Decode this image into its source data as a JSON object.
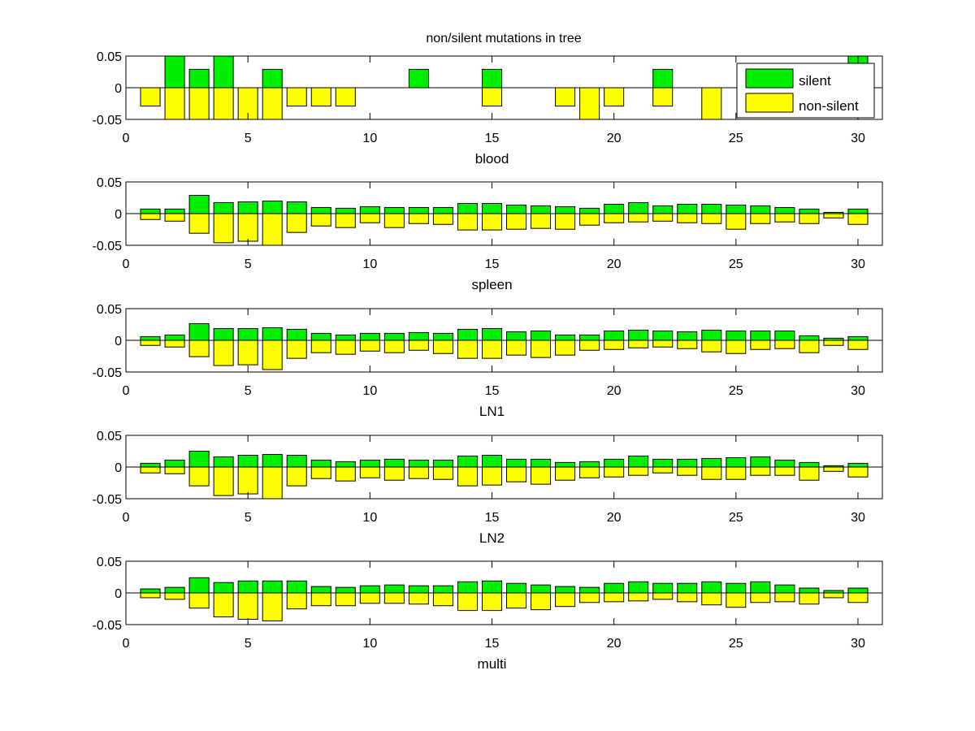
{
  "chart_data": {
    "type": "bar",
    "title": "non/silent mutations in tree",
    "legend": {
      "placement": "top-right",
      "entries": [
        "silent",
        "non-silent"
      ]
    },
    "colors": {
      "silent": "#00ee00",
      "non_silent": "#ffff00",
      "edge": "#000000"
    },
    "xlim": [
      0,
      31
    ],
    "ylim": [
      -0.05,
      0.05
    ],
    "xticks": [
      0,
      5,
      10,
      15,
      20,
      25,
      30
    ],
    "yticks": [
      0.05,
      0,
      -0.05
    ],
    "ytick_labels": [
      "0.05",
      "0",
      "-0.05"
    ],
    "x": [
      1,
      2,
      3,
      4,
      5,
      6,
      7,
      8,
      9,
      10,
      11,
      12,
      13,
      14,
      15,
      16,
      17,
      18,
      19,
      20,
      21,
      22,
      23,
      24,
      25,
      26,
      27,
      28,
      29,
      30
    ],
    "subplots": [
      {
        "xlabel": "blood",
        "series": [
          {
            "name": "silent",
            "values": [
              0,
              0.057,
              0.029,
              0.057,
              0,
              0.029,
              0,
              0,
              0,
              0,
              0,
              0.029,
              0,
              0,
              0.029,
              0,
              0,
              0,
              0,
              0,
              0,
              0.029,
              0,
              0,
              0,
              0,
              0,
              0,
              0,
              0.057
            ]
          },
          {
            "name": "non-silent",
            "values": [
              -0.029,
              -0.057,
              -0.057,
              -0.057,
              -0.057,
              -0.057,
              -0.029,
              -0.029,
              -0.029,
              0,
              0,
              0,
              0,
              0,
              -0.029,
              0,
              0,
              -0.029,
              -0.057,
              -0.029,
              0,
              -0.029,
              0,
              -0.057,
              0,
              0,
              0,
              0,
              0,
              0
            ]
          }
        ]
      },
      {
        "xlabel": "spleen",
        "series": [
          {
            "name": "silent",
            "values": [
              0.0072,
              0.0072,
              0.0288,
              0.0174,
              0.0186,
              0.0199,
              0.0186,
              0.0097,
              0.0085,
              0.011,
              0.0097,
              0.0097,
              0.0097,
              0.016,
              0.016,
              0.0136,
              0.0123,
              0.011,
              0.0085,
              0.0148,
              0.0174,
              0.0123,
              0.0148,
              0.0148,
              0.0136,
              0.0123,
              0.0097,
              0.0072,
              0.002,
              0.0072
            ]
          },
          {
            "name": "non-silent",
            "values": [
              -0.0093,
              -0.0119,
              -0.031,
              -0.046,
              -0.0436,
              -0.051,
              -0.0297,
              -0.0195,
              -0.022,
              -0.0144,
              -0.022,
              -0.0157,
              -0.017,
              -0.0258,
              -0.0258,
              -0.0246,
              -0.0233,
              -0.0246,
              -0.0182,
              -0.0144,
              -0.0131,
              -0.0119,
              -0.0144,
              -0.0157,
              -0.0246,
              -0.0157,
              -0.0131,
              -0.0157,
              -0.0068,
              -0.017
            ]
          }
        ]
      },
      {
        "xlabel": "LN1",
        "series": [
          {
            "name": "silent",
            "values": [
              0.0059,
              0.0085,
              0.0263,
              0.0186,
              0.0186,
              0.0199,
              0.0174,
              0.011,
              0.0085,
              0.011,
              0.011,
              0.0123,
              0.011,
              0.0174,
              0.0186,
              0.0136,
              0.0148,
              0.0085,
              0.0085,
              0.0148,
              0.0161,
              0.0148,
              0.0136,
              0.0161,
              0.0148,
              0.0148,
              0.0148,
              0.0072,
              0.0034,
              0.0059
            ]
          },
          {
            "name": "non-silent",
            "values": [
              -0.008,
              -0.0106,
              -0.0258,
              -0.0398,
              -0.0386,
              -0.0462,
              -0.0284,
              -0.0195,
              -0.022,
              -0.017,
              -0.0195,
              -0.0157,
              -0.0208,
              -0.0284,
              -0.0284,
              -0.0233,
              -0.0271,
              -0.0233,
              -0.0157,
              -0.0144,
              -0.0119,
              -0.0106,
              -0.0131,
              -0.0182,
              -0.0208,
              -0.0144,
              -0.0131,
              -0.0195,
              -0.008,
              -0.0144
            ]
          }
        ]
      },
      {
        "xlabel": "LN2",
        "series": [
          {
            "name": "silent",
            "values": [
              0.0059,
              0.011,
              0.025,
              0.0161,
              0.0186,
              0.0199,
              0.0186,
              0.011,
              0.0085,
              0.011,
              0.0123,
              0.011,
              0.011,
              0.0174,
              0.0186,
              0.0123,
              0.0123,
              0.0072,
              0.0085,
              0.0123,
              0.0174,
              0.0123,
              0.0123,
              0.0136,
              0.0148,
              0.0161,
              0.011,
              0.0072,
              0.0021,
              0.0059
            ]
          },
          {
            "name": "non-silent",
            "values": [
              -0.0093,
              -0.0106,
              -0.0297,
              -0.045,
              -0.0424,
              -0.051,
              -0.0297,
              -0.0182,
              -0.022,
              -0.017,
              -0.0208,
              -0.0182,
              -0.0195,
              -0.0297,
              -0.0284,
              -0.0233,
              -0.0271,
              -0.0208,
              -0.017,
              -0.0157,
              -0.0131,
              -0.0093,
              -0.0131,
              -0.0195,
              -0.0195,
              -0.0131,
              -0.0131,
              -0.0208,
              -0.0068,
              -0.0157
            ]
          }
        ]
      },
      {
        "xlabel": "multi",
        "series": [
          {
            "name": "silent",
            "values": [
              0.0063,
              0.0088,
              0.024,
              0.0164,
              0.0189,
              0.0189,
              0.0189,
              0.0101,
              0.0088,
              0.0113,
              0.0126,
              0.0113,
              0.0113,
              0.0176,
              0.0189,
              0.0151,
              0.0126,
              0.0101,
              0.0088,
              0.0151,
              0.0176,
              0.0151,
              0.0151,
              0.0176,
              0.0151,
              0.0176,
              0.0126,
              0.0076,
              0.0038,
              0.0076
            ]
          },
          {
            "name": "non-silent",
            "values": [
              -0.0076,
              -0.0101,
              -0.024,
              -0.0378,
              -0.0416,
              -0.0441,
              -0.0252,
              -0.0202,
              -0.0202,
              -0.0164,
              -0.0164,
              -0.0176,
              -0.0202,
              -0.0277,
              -0.0277,
              -0.024,
              -0.0265,
              -0.0214,
              -0.0151,
              -0.0139,
              -0.0126,
              -0.0101,
              -0.0139,
              -0.0189,
              -0.0227,
              -0.0151,
              -0.0139,
              -0.0176,
              -0.0076,
              -0.0151
            ]
          }
        ]
      }
    ]
  }
}
